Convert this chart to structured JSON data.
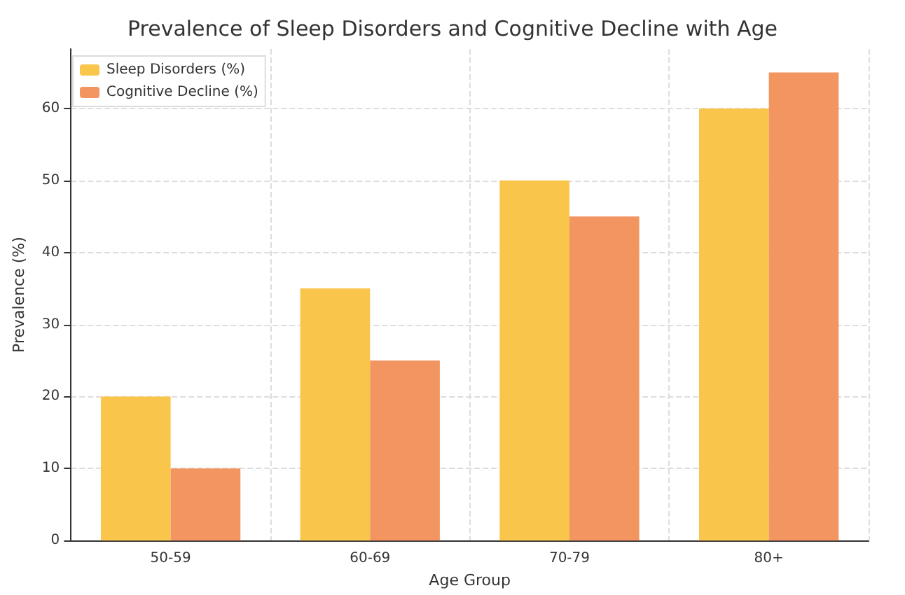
{
  "chart_data": {
    "type": "bar",
    "title": "Prevalence of Sleep Disorders and Cognitive Decline with Age",
    "xlabel": "Age Group",
    "ylabel": "Prevalence (%)",
    "categories": [
      "50-59",
      "60-69",
      "70-79",
      "80+"
    ],
    "series": [
      {
        "name": "Sleep Disorders (%)",
        "color": "#f9c54a",
        "values": [
          20,
          35,
          50,
          60
        ]
      },
      {
        "name": "Cognitive Decline (%)",
        "color": "#f39561",
        "values": [
          10,
          25,
          45,
          65
        ]
      }
    ],
    "ylim": [
      0,
      68.25
    ],
    "yticks": [
      0,
      10,
      20,
      30,
      40,
      50,
      60
    ],
    "grid": true,
    "legend": "top left"
  }
}
